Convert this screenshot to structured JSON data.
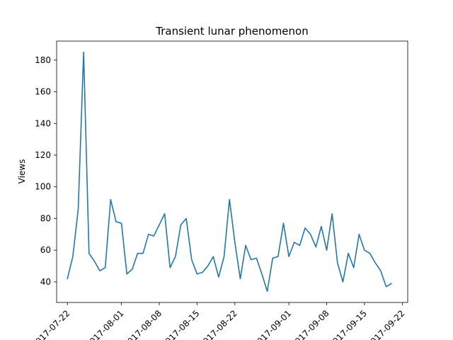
{
  "chart_data": {
    "type": "line",
    "title": "Transient lunar phenomenon",
    "xlabel": "",
    "ylabel": "Views",
    "x_type": "date",
    "xlim": [
      "2017-07-20",
      "2017-09-23"
    ],
    "ylim": [
      27,
      192
    ],
    "x_ticks": [
      "2017-07-22",
      "2017-08-01",
      "2017-08-08",
      "2017-08-15",
      "2017-08-22",
      "2017-09-01",
      "2017-09-08",
      "2017-09-15",
      "2017-09-22"
    ],
    "y_ticks": [
      40,
      60,
      80,
      100,
      120,
      140,
      160,
      180
    ],
    "grid": false,
    "legend": "none",
    "series_color": "#1f77b4",
    "x": [
      "2017-07-22",
      "2017-07-23",
      "2017-07-24",
      "2017-07-25",
      "2017-07-26",
      "2017-07-27",
      "2017-07-28",
      "2017-07-29",
      "2017-07-30",
      "2017-07-31",
      "2017-08-01",
      "2017-08-02",
      "2017-08-03",
      "2017-08-04",
      "2017-08-05",
      "2017-08-06",
      "2017-08-07",
      "2017-08-08",
      "2017-08-09",
      "2017-08-10",
      "2017-08-11",
      "2017-08-12",
      "2017-08-13",
      "2017-08-14",
      "2017-08-15",
      "2017-08-16",
      "2017-08-17",
      "2017-08-18",
      "2017-08-19",
      "2017-08-20",
      "2017-08-21",
      "2017-08-22",
      "2017-08-23",
      "2017-08-24",
      "2017-08-25",
      "2017-08-26",
      "2017-08-27",
      "2017-08-28",
      "2017-08-29",
      "2017-08-30",
      "2017-08-31",
      "2017-09-01",
      "2017-09-02",
      "2017-09-03",
      "2017-09-04",
      "2017-09-05",
      "2017-09-06",
      "2017-09-07",
      "2017-09-08",
      "2017-09-09",
      "2017-09-10",
      "2017-09-11",
      "2017-09-12",
      "2017-09-13",
      "2017-09-14",
      "2017-09-15",
      "2017-09-16",
      "2017-09-17",
      "2017-09-18",
      "2017-09-19",
      "2017-09-20"
    ],
    "series": [
      {
        "values": [
          42,
          56,
          86,
          185,
          58,
          53,
          47,
          49,
          92,
          78,
          77,
          45,
          48,
          58,
          58,
          70,
          69,
          76,
          83,
          49,
          56,
          76,
          80,
          54,
          45,
          46,
          50,
          56,
          43,
          56,
          92,
          65,
          42,
          63,
          54,
          55,
          45,
          34,
          55,
          56,
          77,
          56,
          65,
          63,
          74,
          70,
          62,
          75,
          60,
          83,
          52,
          40,
          58,
          49,
          70,
          60,
          58,
          52,
          47,
          37,
          39
        ]
      }
    ]
  }
}
